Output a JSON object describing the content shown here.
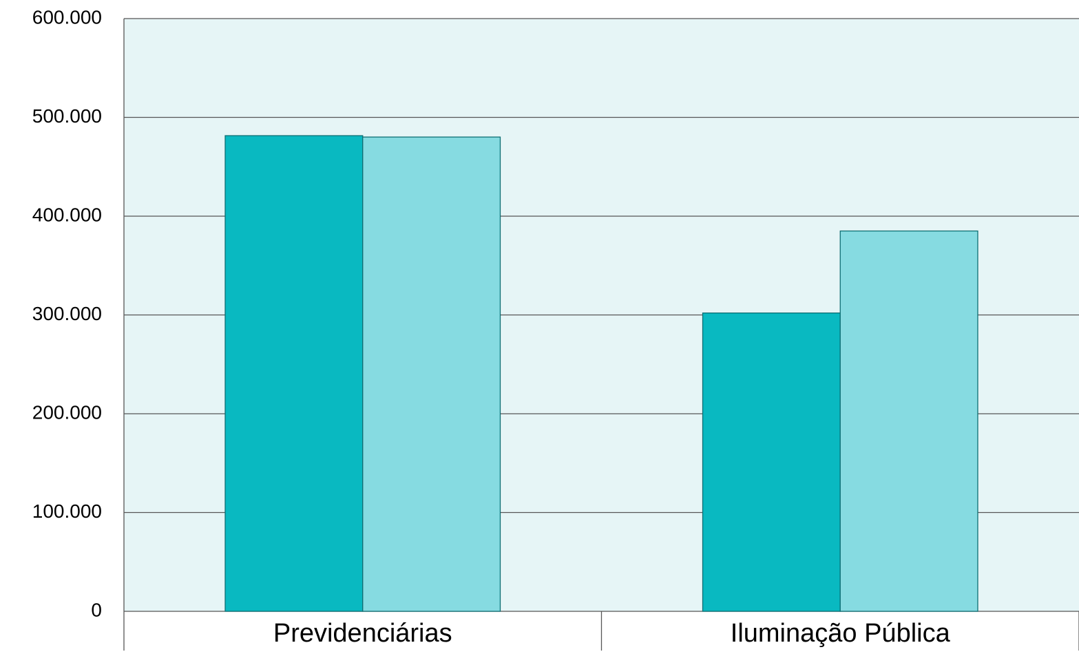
{
  "chart_data": {
    "type": "bar",
    "categories": [
      "Previdenciárias",
      "Iluminação Pública"
    ],
    "series": [
      {
        "color": "#09b9c1",
        "values": [
          481500,
          302000
        ]
      },
      {
        "color": "#86dbe1",
        "values": [
          480100,
          385000
        ]
      }
    ],
    "ylim": [
      0,
      600000
    ],
    "yticks": [
      0,
      {
        "value": 100000,
        "label": "100.000"
      },
      {
        "value": 200000,
        "label": "200.000"
      },
      {
        "value": 300000,
        "label": "300.000"
      },
      {
        "value": 400000,
        "label": "400.000"
      },
      {
        "value": 500000,
        "label": "500.000"
      },
      {
        "value": 600000,
        "label": "600.000"
      }
    ],
    "grid": true
  }
}
